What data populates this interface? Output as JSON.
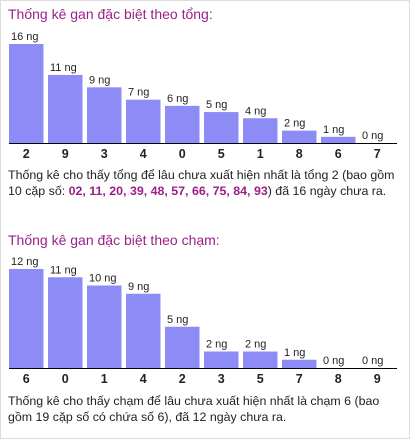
{
  "colors": {
    "bar": "#8d8cf6",
    "title": "#9c1f87",
    "text": "#222222",
    "axis": "#000000"
  },
  "section1": {
    "title": "Thống kê gan đặc biệt theo tổng:",
    "desc_before": "Thống kê cho thấy tổng để lâu chưa xuất hiện nhất là tổng 2 (bao gồm 10 cặp số: ",
    "desc_pairs": "02, 11, 20, 39, 48, 57, 66, 75, 84, 93",
    "desc_after": ") đã 16 ngày chưa ra."
  },
  "section2": {
    "title": "Thống kê gan đặc biệt theo chạm:",
    "desc": "Thống kê cho thấy chạm để lâu chưa xuất hiện nhất là chạm 6 (bao gồm 19 cặp số có chứa số 6), đã 12 ngày chưa ra."
  },
  "chart_data": [
    {
      "type": "bar",
      "categories": [
        "2",
        "9",
        "3",
        "4",
        "0",
        "5",
        "1",
        "8",
        "6",
        "7"
      ],
      "values": [
        16,
        11,
        9,
        7,
        6,
        5,
        4,
        2,
        1,
        0
      ],
      "data_labels": [
        "16 ng",
        "11 ng",
        "9 ng",
        "7 ng",
        "6 ng",
        "5 ng",
        "4 ng",
        "2 ng",
        "1 ng",
        "0 ng"
      ],
      "ylim": [
        0,
        16
      ],
      "grid": false
    },
    {
      "type": "bar",
      "categories": [
        "6",
        "0",
        "1",
        "4",
        "2",
        "3",
        "5",
        "7",
        "8",
        "9"
      ],
      "values": [
        12,
        11,
        10,
        9,
        5,
        2,
        2,
        1,
        0,
        0
      ],
      "data_labels": [
        "12 ng",
        "11 ng",
        "10 ng",
        "9 ng",
        "5 ng",
        "2 ng",
        "2 ng",
        "1 ng",
        "0 ng",
        "0 ng"
      ],
      "ylim": [
        0,
        12
      ],
      "grid": false
    }
  ]
}
